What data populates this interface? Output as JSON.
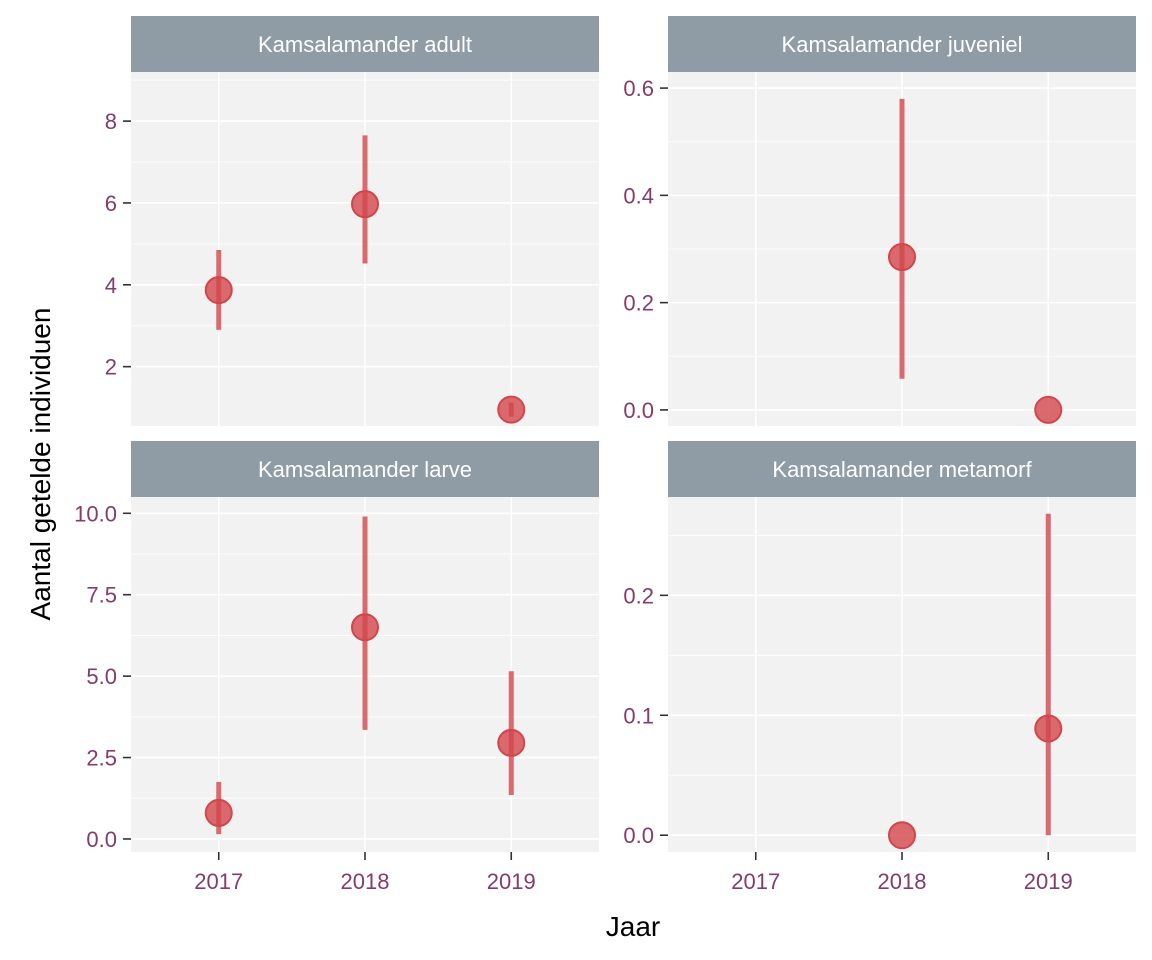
{
  "chart_data": {
    "type": "scatter",
    "xlabel": "Jaar",
    "ylabel": "Aantal getelde individuen",
    "x_categories": [
      "2017",
      "2018",
      "2019"
    ],
    "colors": {
      "point": "#d2464b",
      "panel_bg": "#f2f2f2",
      "grid": "#ffffff",
      "strip_bg": "#8f9ca6",
      "strip_text": "#ffffff",
      "tick_text": "#843c6b",
      "axis_title": "#000000"
    },
    "grid": true,
    "panels": [
      {
        "title": "Kamsalamander adult",
        "ylim": [
          0.55,
          9.2
        ],
        "yticks": [
          2,
          4,
          6,
          8
        ],
        "ytick_labels": [
          "2",
          "4",
          "6",
          "8"
        ],
        "points": [
          {
            "x": "2017",
            "y": 3.87,
            "lo": 2.9,
            "hi": 4.85
          },
          {
            "x": "2018",
            "y": 5.97,
            "lo": 4.52,
            "hi": 7.65
          },
          {
            "x": "2019",
            "y": 0.95,
            "lo": 0.78,
            "hi": 1.12
          }
        ]
      },
      {
        "title": "Kamsalamander juveniel",
        "ylim": [
          -0.03,
          0.63
        ],
        "yticks": [
          0.0,
          0.2,
          0.4,
          0.6
        ],
        "ytick_labels": [
          "0.0",
          "0.2",
          "0.4",
          "0.6"
        ],
        "points": [
          {
            "x": "2018",
            "y": 0.285,
            "lo": 0.058,
            "hi": 0.58
          },
          {
            "x": "2019",
            "y": 0.0,
            "lo": 0.0,
            "hi": 0.0
          }
        ]
      },
      {
        "title": "Kamsalamander larve",
        "ylim": [
          -0.4,
          10.5
        ],
        "yticks": [
          0.0,
          2.5,
          5.0,
          7.5,
          10.0
        ],
        "ytick_labels": [
          "0.0",
          "2.5",
          "5.0",
          "7.5",
          "10.0"
        ],
        "points": [
          {
            "x": "2017",
            "y": 0.8,
            "lo": 0.15,
            "hi": 1.75
          },
          {
            "x": "2018",
            "y": 6.5,
            "lo": 3.35,
            "hi": 9.9
          },
          {
            "x": "2019",
            "y": 2.95,
            "lo": 1.35,
            "hi": 5.15
          }
        ]
      },
      {
        "title": "Kamsalamander metamorf",
        "ylim": [
          -0.014,
          0.282
        ],
        "yticks": [
          0.0,
          0.1,
          0.2
        ],
        "ytick_labels": [
          "0.0",
          "0.1",
          "0.2"
        ],
        "points": [
          {
            "x": "2018",
            "y": 0.0,
            "lo": 0.0,
            "hi": 0.0
          },
          {
            "x": "2019",
            "y": 0.089,
            "lo": 0.0,
            "hi": 0.268
          }
        ]
      }
    ]
  }
}
